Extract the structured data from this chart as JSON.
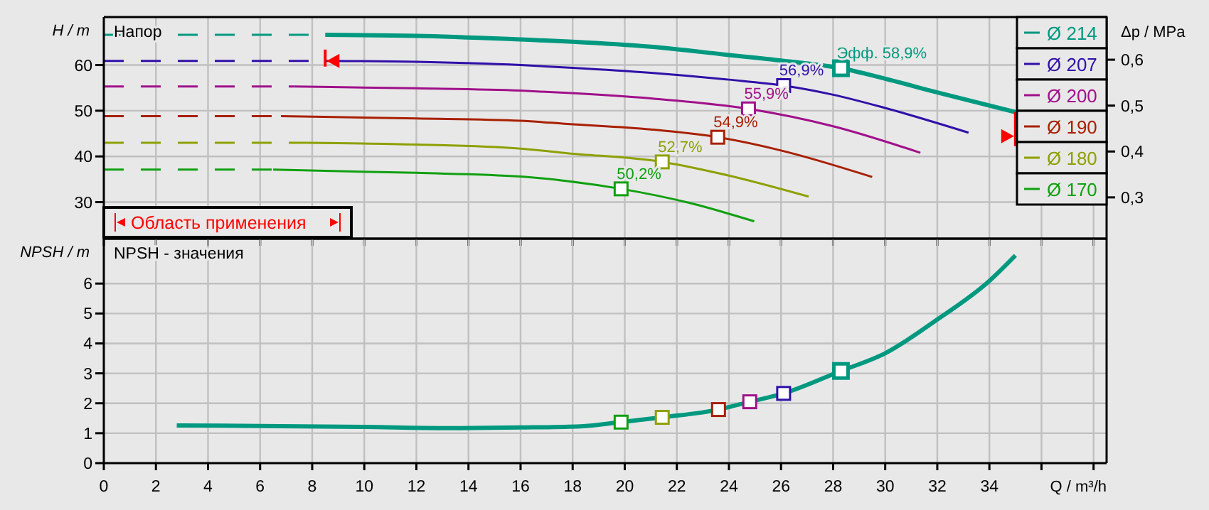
{
  "chart_data": [
    {
      "type": "line",
      "title": "Напор",
      "ylabel": "H / m",
      "y2label": "Δp / MPa",
      "xlim": [
        0,
        38.5
      ],
      "xticks": [
        0,
        2,
        4,
        6,
        8,
        10,
        12,
        14,
        16,
        18,
        20,
        22,
        24,
        26,
        28,
        30,
        32,
        34,
        36,
        38
      ],
      "ylim": [
        22,
        70.5
      ],
      "yticks": [
        30,
        40,
        50,
        60
      ],
      "y2lim": [
        0.21,
        0.693
      ],
      "y2ticks": [
        {
          "value": 0.3,
          "label": "0,3"
        },
        {
          "value": 0.4,
          "label": "0,4"
        },
        {
          "value": 0.5,
          "label": "0,5"
        },
        {
          "value": 0.6,
          "label": "0,6"
        }
      ],
      "tick_labels": "y",
      "grid": true,
      "legend": "right",
      "series": [
        {
          "name": "Ø 214",
          "color": "#009980",
          "x": [
            8.5,
            12,
            16,
            18,
            21,
            24,
            26,
            28.3,
            30,
            32,
            35
          ],
          "values": [
            66.6,
            66.4,
            65.6,
            65.1,
            64,
            62.2,
            61,
            59.3,
            57,
            54,
            49.7
          ]
        },
        {
          "name": "Ø 207",
          "color": "#3010a8",
          "x": [
            8.5,
            12,
            16,
            18,
            21,
            24,
            26.1,
            28,
            30,
            33.2
          ],
          "values": [
            60.9,
            60.7,
            60,
            59.4,
            58.3,
            56.8,
            55.5,
            53.5,
            50.6,
            45.2
          ]
        },
        {
          "name": "Ø 200",
          "color": "#a0108a",
          "x": [
            7.3,
            12,
            16,
            17.8,
            21,
            24.75,
            28,
            31.35
          ],
          "values": [
            55.3,
            54.9,
            54.4,
            53.9,
            52.7,
            50.4,
            46.6,
            40.8
          ]
        },
        {
          "name": "Ø 190",
          "color": "#a82000",
          "x": [
            6.8,
            12,
            16,
            17.8,
            21,
            23.57,
            26,
            29.5
          ],
          "values": [
            48.8,
            48.3,
            47.8,
            47.1,
            45.9,
            44.2,
            41.3,
            35.5
          ]
        },
        {
          "name": "Ø 180",
          "color": "#8ea000",
          "x": [
            7.8,
            12,
            16,
            17.8,
            21.44,
            24,
            27.06
          ],
          "values": [
            43,
            42.6,
            41.7,
            40.7,
            38.8,
            35.8,
            31.2
          ]
        },
        {
          "name": "Ø 170",
          "color": "#10a010",
          "x": [
            6.5,
            12,
            16,
            17.8,
            19.86,
            22.5,
            24.97
          ],
          "values": [
            37.1,
            36.4,
            35.6,
            34.6,
            32.9,
            29.8,
            25.8
          ]
        },
        {
          "color": "#009980",
          "line_style": "dashed",
          "x": [
            0,
            8.5
          ],
          "values": [
            66.6,
            66.6
          ]
        },
        {
          "color": "#3010a8",
          "line_style": "dashed",
          "x": [
            0,
            8.5
          ],
          "values": [
            60.9,
            60.9
          ]
        },
        {
          "color": "#a0108a",
          "line_style": "dashed",
          "x": [
            0,
            7.3
          ],
          "values": [
            55.3,
            55.3
          ]
        },
        {
          "color": "#a82000",
          "line_style": "dashed",
          "x": [
            0,
            6.8
          ],
          "values": [
            48.8,
            48.8
          ]
        },
        {
          "color": "#8ea000",
          "line_style": "dashed",
          "x": [
            0,
            7.8
          ],
          "values": [
            43,
            43
          ]
        },
        {
          "color": "#10a010",
          "line_style": "dashed",
          "x": [
            0,
            6.5
          ],
          "values": [
            37.1,
            37.1
          ]
        },
        {
          "type": "scatter",
          "marker": "square",
          "x": [
            28.3,
            26.1,
            24.75,
            23.57,
            21.44,
            19.86
          ],
          "values": [
            59.3,
            55.5,
            50.4,
            44.2,
            38.8,
            32.9
          ],
          "colors": [
            "#009980",
            "#3010a8",
            "#a0108a",
            "#a82000",
            "#8ea000",
            "#10a010"
          ]
        }
      ],
      "annotations": [
        {
          "text": "Эфф.  58,9%",
          "x": 28.3,
          "y": 59.3
        },
        {
          "text": "56,9%",
          "x": 26.1,
          "y": 55.5
        },
        {
          "text": "55,9%",
          "x": 24.75,
          "y": 50.4
        },
        {
          "text": "54,9%",
          "x": 23.57,
          "y": 44.2
        },
        {
          "text": "52,7%",
          "x": 21.44,
          "y": 38.8
        },
        {
          "text": "50,2%",
          "x": 19.86,
          "y": 32.9
        },
        "Область применения"
      ]
    },
    {
      "type": "line",
      "title": "NPSH - значения",
      "ylabel": "NPSH / m",
      "xlabel": "Q / m³/h",
      "xlim": [
        0,
        38.5
      ],
      "xticks": [
        0,
        2,
        4,
        6,
        8,
        10,
        12,
        14,
        16,
        18,
        20,
        22,
        24,
        26,
        28,
        30,
        32,
        34,
        {
          "value": 36,
          "label": null
        },
        {
          "value": 38,
          "label": null
        }
      ],
      "ylim": [
        0,
        7.5
      ],
      "yticks": [
        0,
        1,
        2,
        3,
        4,
        5,
        6
      ],
      "grid": true,
      "series": [
        {
          "color": "#009980",
          "x": [
            2.8,
            6,
            10,
            13,
            16,
            18.3,
            19.86,
            21.44,
            23.6,
            24.8,
            26.1,
            28.3,
            30,
            32,
            34,
            35
          ],
          "values": [
            1.26,
            1.24,
            1.21,
            1.17,
            1.19,
            1.23,
            1.37,
            1.53,
            1.79,
            2.05,
            2.33,
            3.08,
            3.67,
            4.8,
            6.09,
            6.94
          ]
        },
        {
          "type": "scatter",
          "marker": "square",
          "x": [
            28.3,
            26.1,
            24.8,
            23.6,
            21.44,
            19.86
          ],
          "values": [
            3.08,
            2.33,
            2.05,
            1.79,
            1.53,
            1.37
          ],
          "colors": [
            "#009980",
            "#3010a8",
            "#a0108a",
            "#a82000",
            "#8ea000",
            "#10a010"
          ]
        }
      ]
    }
  ]
}
